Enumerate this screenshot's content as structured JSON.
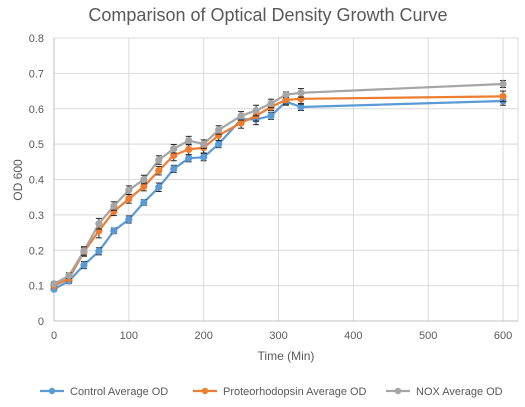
{
  "chart_data": {
    "type": "line",
    "title": "Comparison of Optical Density Growth Curve",
    "xlabel": "Time  (Min)",
    "ylabel": "OD 600",
    "xlim": [
      0,
      620
    ],
    "ylim": [
      0,
      0.8
    ],
    "x_ticks": [
      "0",
      "100",
      "200",
      "300",
      "400",
      "500",
      "600"
    ],
    "y_ticks": [
      "0",
      "0.1",
      "0.2",
      "0.3",
      "0.4",
      "0.5",
      "0.6",
      "0.7",
      "0.8"
    ],
    "grid": true,
    "legend_position": "bottom",
    "x": [
      0,
      20,
      40,
      60,
      80,
      100,
      120,
      140,
      160,
      180,
      200,
      220,
      250,
      270,
      290,
      310,
      330,
      600
    ],
    "series": [
      {
        "name": "Control Average OD",
        "color": "#5B9BD5",
        "values": [
          0.09,
          0.113,
          0.158,
          0.197,
          0.255,
          0.287,
          0.335,
          0.378,
          0.43,
          0.46,
          0.463,
          0.5,
          0.57,
          0.57,
          0.58,
          0.62,
          0.605,
          0.622
        ],
        "errors": [
          0.005,
          0.007,
          0.01,
          0.01,
          0.008,
          0.01,
          0.008,
          0.012,
          0.01,
          0.01,
          0.01,
          0.01,
          0.012,
          0.015,
          0.01,
          0.01,
          0.01,
          0.012
        ]
      },
      {
        "name": "Proteorhodopsin Average OD",
        "color": "#ED7D31",
        "values": [
          0.1,
          0.12,
          0.195,
          0.255,
          0.31,
          0.345,
          0.38,
          0.425,
          0.468,
          0.485,
          0.49,
          0.525,
          0.56,
          0.58,
          0.605,
          0.625,
          0.628,
          0.635
        ],
        "errors": [
          0.006,
          0.007,
          0.012,
          0.02,
          0.012,
          0.012,
          0.012,
          0.012,
          0.015,
          0.015,
          0.015,
          0.015,
          0.015,
          0.015,
          0.01,
          0.012,
          0.015,
          0.015
        ]
      },
      {
        "name": "NOX Average OD",
        "color": "#A5A5A5",
        "values": [
          0.105,
          0.128,
          0.198,
          0.275,
          0.325,
          0.37,
          0.4,
          0.455,
          0.487,
          0.51,
          0.5,
          0.54,
          0.58,
          0.595,
          0.615,
          0.64,
          0.645,
          0.67
        ],
        "errors": [
          0.006,
          0.008,
          0.012,
          0.015,
          0.012,
          0.012,
          0.012,
          0.012,
          0.012,
          0.012,
          0.012,
          0.012,
          0.012,
          0.015,
          0.012,
          0.008,
          0.012,
          0.01
        ]
      }
    ]
  }
}
